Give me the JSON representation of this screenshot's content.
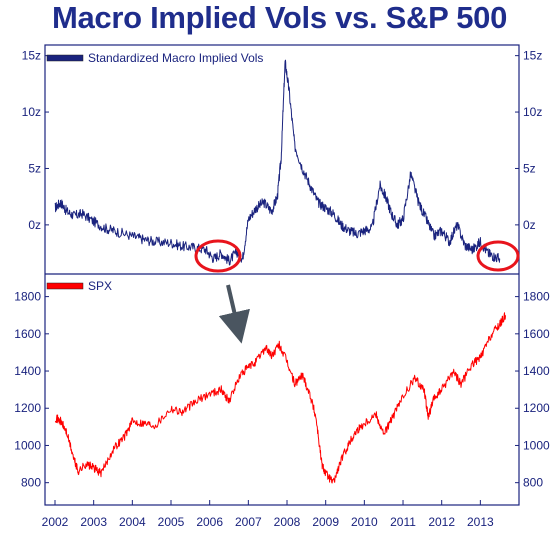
{
  "title": "Macro Implied Vols vs. S&P 500",
  "colors": {
    "title": "#1f2d8c",
    "vol_line": "#1a237e",
    "spx_line": "#ff0000",
    "axis": "#1a237e",
    "circle": "#e8141c",
    "arrow": "#4a5560"
  },
  "chart_data": [
    {
      "type": "line",
      "panel": "top",
      "legend": "top-left",
      "ylim": [
        -4,
        15.5
      ],
      "yticks": [
        15,
        10,
        5,
        0
      ],
      "yticklabels": [
        "15z",
        "10z",
        "5z",
        "0z"
      ],
      "series": [
        {
          "name": "Standardized Macro Implied Vols",
          "x": [
            2002.0,
            2002.15,
            2002.3,
            2002.5,
            2002.7,
            2003.0,
            2003.3,
            2003.6,
            2004.0,
            2004.3,
            2004.6,
            2005.0,
            2005.3,
            2005.6,
            2005.9,
            2006.1,
            2006.3,
            2006.5,
            2006.7,
            2006.85,
            2007.0,
            2007.2,
            2007.4,
            2007.6,
            2007.75,
            2007.85,
            2007.95,
            2008.05,
            2008.2,
            2008.4,
            2008.6,
            2008.8,
            2009.0,
            2009.2,
            2009.4,
            2009.6,
            2009.8,
            2010.0,
            2010.2,
            2010.4,
            2010.55,
            2010.7,
            2010.85,
            2011.0,
            2011.2,
            2011.4,
            2011.6,
            2011.8,
            2012.0,
            2012.2,
            2012.4,
            2012.6,
            2012.8,
            2013.0,
            2013.2,
            2013.35,
            2013.5
          ],
          "values": [
            1.5,
            2.0,
            1.2,
            0.8,
            1.0,
            0.3,
            -0.3,
            -0.6,
            -1.0,
            -1.3,
            -1.5,
            -1.6,
            -1.9,
            -2.0,
            -2.2,
            -3.0,
            -2.5,
            -3.2,
            -2.4,
            -3.0,
            0.5,
            1.5,
            2.0,
            1.2,
            2.5,
            6.0,
            14.5,
            12.0,
            7.0,
            5.0,
            3.5,
            2.0,
            1.5,
            1.0,
            0.0,
            -0.5,
            -0.8,
            -0.5,
            -0.3,
            3.5,
            2.5,
            1.0,
            0.0,
            0.5,
            4.5,
            2.0,
            0.5,
            -1.0,
            -0.5,
            -1.5,
            0.0,
            -1.8,
            -2.2,
            -1.5,
            -2.5,
            -2.8,
            -3.0
          ]
        }
      ]
    },
    {
      "type": "line",
      "panel": "bottom",
      "legend": "top-left",
      "ylim": [
        680,
        1900
      ],
      "yticks": [
        1800,
        1600,
        1400,
        1200,
        1000,
        800
      ],
      "yticklabels": [
        "1800",
        "1600",
        "1400",
        "1200",
        "1000",
        "800"
      ],
      "xticks": [
        2002,
        2003,
        2004,
        2005,
        2006,
        2007,
        2008,
        2009,
        2010,
        2011,
        2012,
        2013
      ],
      "xticklabels": [
        "2002",
        "2003",
        "2004",
        "2005",
        "2006",
        "2007",
        "2008",
        "2009",
        "2010",
        "2011",
        "2012",
        "2013"
      ],
      "series": [
        {
          "name": "SPX",
          "x": [
            2002.0,
            2002.15,
            2002.3,
            2002.5,
            2002.6,
            2002.8,
            2003.0,
            2003.2,
            2003.5,
            2003.8,
            2004.0,
            2004.3,
            2004.6,
            2005.0,
            2005.3,
            2005.6,
            2006.0,
            2006.3,
            2006.5,
            2006.8,
            2007.0,
            2007.2,
            2007.45,
            2007.6,
            2007.8,
            2008.0,
            2008.2,
            2008.4,
            2008.6,
            2008.75,
            2008.9,
            2009.0,
            2009.2,
            2009.4,
            2009.6,
            2009.8,
            2010.0,
            2010.3,
            2010.5,
            2010.7,
            2011.0,
            2011.3,
            2011.55,
            2011.65,
            2011.8,
            2012.0,
            2012.3,
            2012.5,
            2012.8,
            2013.0,
            2013.3,
            2013.5,
            2013.65
          ],
          "values": [
            1150,
            1130,
            1070,
            920,
            860,
            900,
            880,
            850,
            980,
            1050,
            1130,
            1120,
            1110,
            1200,
            1180,
            1230,
            1280,
            1300,
            1240,
            1380,
            1420,
            1450,
            1530,
            1480,
            1540,
            1450,
            1330,
            1380,
            1270,
            1150,
            900,
            850,
            800,
            920,
            1010,
            1080,
            1120,
            1170,
            1060,
            1140,
            1260,
            1360,
            1300,
            1150,
            1250,
            1300,
            1400,
            1330,
            1440,
            1470,
            1600,
            1650,
            1700
          ]
        }
      ]
    }
  ]
}
